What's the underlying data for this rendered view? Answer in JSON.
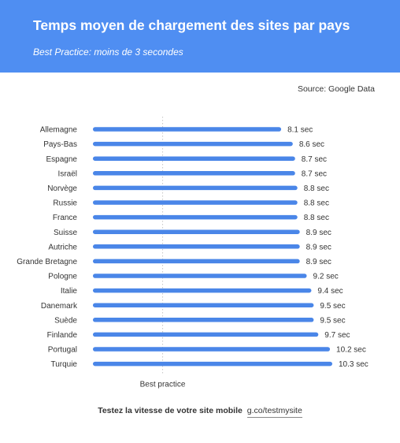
{
  "header": {
    "title": "Temps moyen de chargement des sites par pays",
    "subtitle": "Best Practice: moins de 3 secondes"
  },
  "source": "Source: Google Data",
  "footer": {
    "cta": "Testez la vitesse de votre site mobile",
    "link": "g.co/testmysite"
  },
  "colors": {
    "header_bg": "#4f8ef2",
    "bar": "#4a86e8",
    "reference_line": "#c8c8c8"
  },
  "chart_data": {
    "type": "bar",
    "orientation": "horizontal",
    "title": "Temps moyen de chargement des sites par pays",
    "subtitle": "Best Practice: moins de 3 secondes",
    "categories": [
      "Allemagne",
      "Pays-Bas",
      "Espagne",
      "Israël",
      "Norvège",
      "Russie",
      "France",
      "Suisse",
      "Autriche",
      "Grande Bretagne",
      "Pologne",
      "Italie",
      "Danemark",
      "Suède",
      "Finlande",
      "Portugal",
      "Turquie"
    ],
    "values": [
      8.1,
      8.6,
      8.7,
      8.7,
      8.8,
      8.8,
      8.8,
      8.9,
      8.9,
      8.9,
      9.2,
      9.4,
      9.5,
      9.5,
      9.7,
      10.2,
      10.3
    ],
    "value_labels": [
      "8.1 sec",
      "8.6 sec",
      "8.7 sec",
      "8.7 sec",
      "8.8 sec",
      "8.8 sec",
      "8.8 sec",
      "8.9 sec",
      "8.9 sec",
      "8.9 sec",
      "9.2 sec",
      "9.4 sec",
      "9.5 sec",
      "9.5 sec",
      "9.7 sec",
      "10.2 sec",
      "10.3 sec"
    ],
    "reference": {
      "value": 3,
      "label": "Best practice"
    },
    "xlim": [
      0,
      10.3
    ],
    "grid": false
  }
}
